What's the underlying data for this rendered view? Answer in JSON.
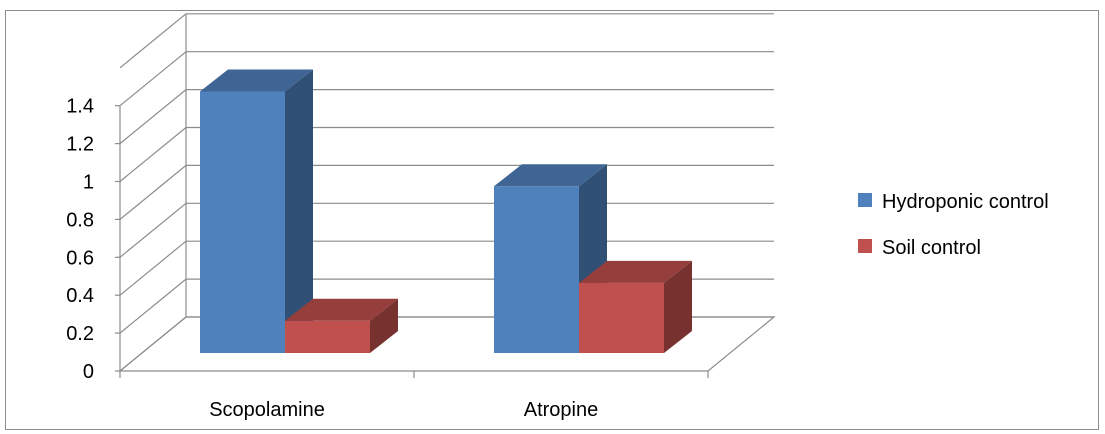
{
  "chart_data": {
    "type": "bar",
    "categories": [
      "Scopolamine",
      "Atropine"
    ],
    "series": [
      {
        "name": "Hydroponic control",
        "values": [
          1.38,
          0.88
        ],
        "color": "#4f81bd"
      },
      {
        "name": "Soil control",
        "values": [
          0.17,
          0.37
        ],
        "color": "#c0504d"
      }
    ],
    "yticks": [
      "0",
      "0.2",
      "0.4",
      "0.6",
      "0.8",
      "1",
      "1.2",
      "1.4"
    ],
    "ylim": [
      0,
      1.6
    ],
    "grid": true,
    "legend_position": "right",
    "style": "3d-clustered-column"
  }
}
